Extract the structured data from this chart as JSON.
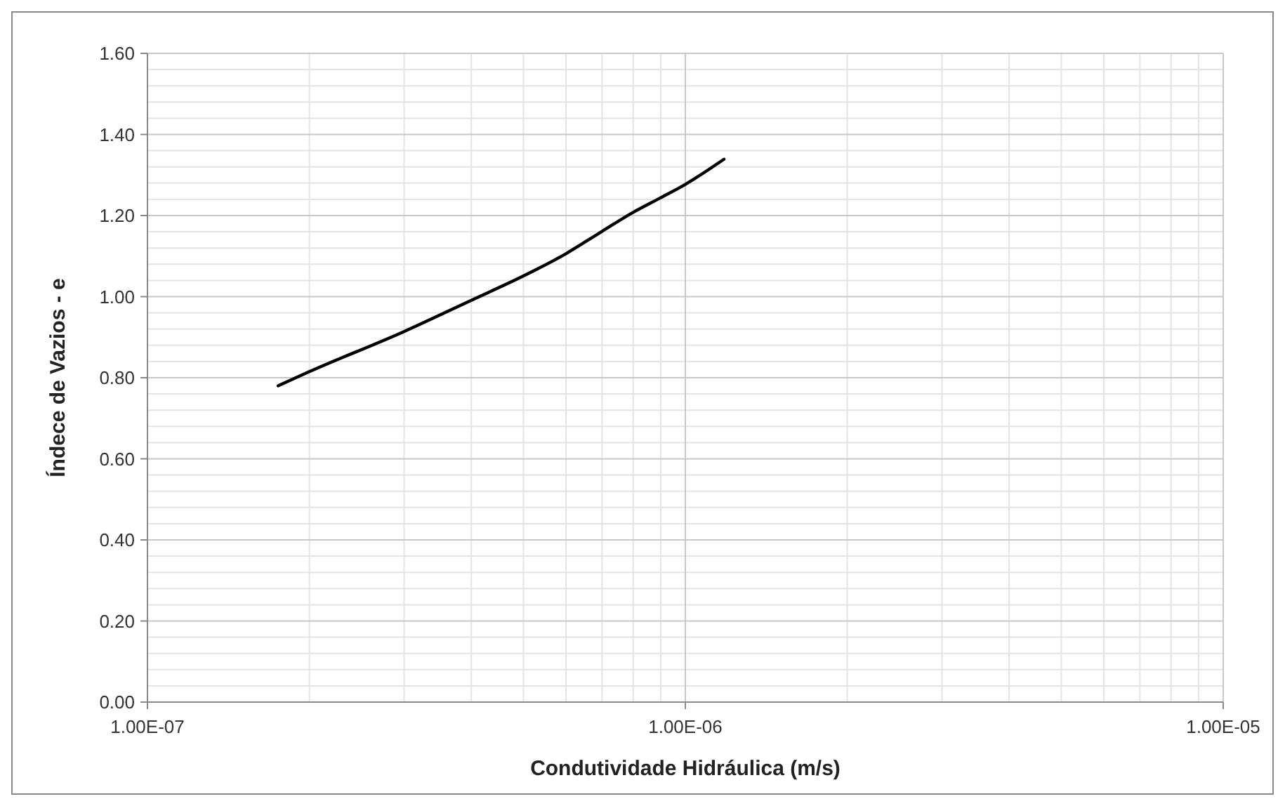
{
  "chart_data": {
    "type": "line",
    "xlabel": "Condutividade Hidráulica (m/s)",
    "ylabel": "Índece de Vazios - e",
    "log": "x",
    "grid": true,
    "marker": "none",
    "line_style": "solid",
    "xlim": [
      1e-07,
      1e-05
    ],
    "xticks": [
      {
        "value": 1e-07,
        "label": "1.00E-07"
      },
      {
        "value": 1e-06,
        "label": "1.00E-06"
      },
      {
        "value": 1e-05,
        "label": "1.00E-05"
      }
    ],
    "ylim": [
      0,
      1.6
    ],
    "yticks": [
      {
        "value": 0,
        "label": "0.00"
      },
      {
        "value": 0.2,
        "label": "0.20"
      },
      {
        "value": 0.4,
        "label": "0.40"
      },
      {
        "value": 0.6,
        "label": "0.60"
      },
      {
        "value": 0.8,
        "label": "0.80"
      },
      {
        "value": 1,
        "label": "1.00"
      },
      {
        "value": 1.2,
        "label": "1.20"
      },
      {
        "value": 1.4,
        "label": "1.40"
      },
      {
        "value": 1.6,
        "label": "1.60"
      }
    ],
    "series": [
      {
        "color": "#000000",
        "x": [
          1.75e-07,
          2e-07,
          3e-07,
          4e-07,
          5e-07,
          6e-07,
          7e-07,
          8e-07,
          9e-07,
          1e-06,
          1.18e-06
        ],
        "values": [
          0.78,
          0.815,
          0.914,
          0.991,
          1.051,
          1.106,
          1.161,
          1.208,
          1.244,
          1.277,
          1.339
        ]
      }
    ]
  }
}
